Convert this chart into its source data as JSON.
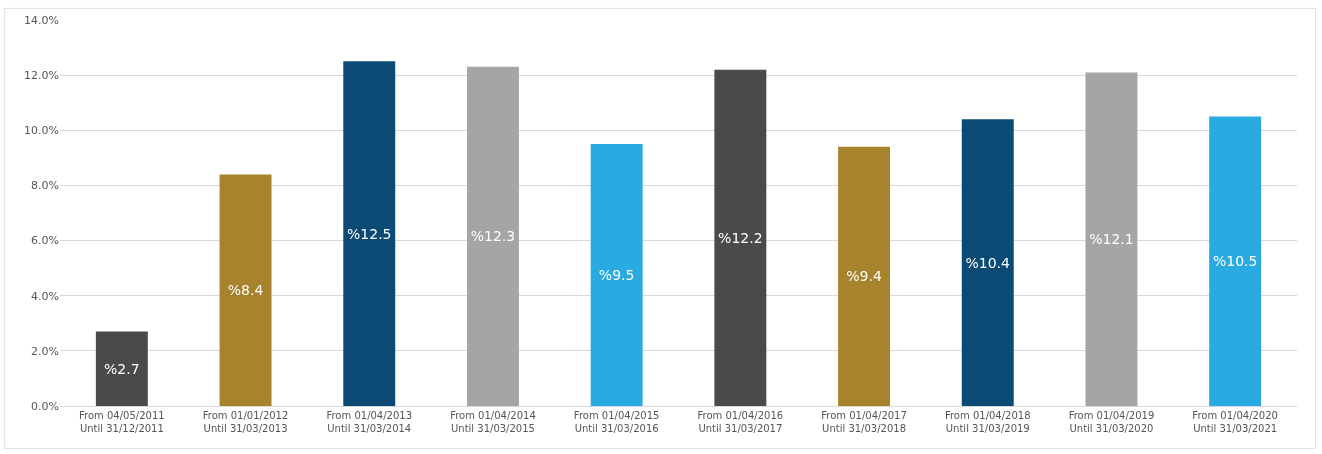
{
  "chart_data": {
    "type": "bar",
    "categories": [
      "From 04/05/2011\nUntil 31/12/2011",
      "From 01/01/2012\nUntil 31/03/2013",
      "From 01/04/2013\nUntil 31/03/2014",
      "From 01/04/2014\nUntil 31/03/2015",
      "From 01/04/2015\nUntil 31/03/2016",
      "From 01/04/2016\nUntil 31/03/2017",
      "From 01/04/2017\nUntil 31/03/2018",
      "From 01/04/2018\nUntil 31/03/2019",
      "From 01/04/2019\nUntil 31/03/2020",
      "From 01/04/2020\nUntil 31/03/2021"
    ],
    "values": [
      2.7,
      8.4,
      12.5,
      12.3,
      9.5,
      12.2,
      9.4,
      10.4,
      12.1,
      10.5
    ],
    "colors": [
      "#4a4a4a",
      "#a8832e",
      "#0b4a75",
      "#a6a5a5",
      "#29aae1",
      "#4a4a4a",
      "#a8832e",
      "#0b4a75",
      "#a6a5a5",
      "#29aae1"
    ],
    "value_labels": [
      "%2.7",
      "%8.4",
      "%12.5",
      "%12.3",
      "%9.5",
      "%12.2",
      "%9.4",
      "%10.4",
      "%12.1",
      "%10.5"
    ],
    "ylim": [
      0,
      14
    ],
    "yticks": [
      {
        "value": 0,
        "label": "0.0%"
      },
      {
        "value": 2,
        "label": "2.0%"
      },
      {
        "value": 4,
        "label": "4.0%"
      },
      {
        "value": 6,
        "label": "6.0%"
      },
      {
        "value": 8,
        "label": "8.0%"
      },
      {
        "value": 10,
        "label": "10.0%"
      },
      {
        "value": 12,
        "label": "12.0%"
      },
      {
        "value": 14,
        "label": "14.0%"
      }
    ],
    "grid": "y",
    "legend": false
  }
}
